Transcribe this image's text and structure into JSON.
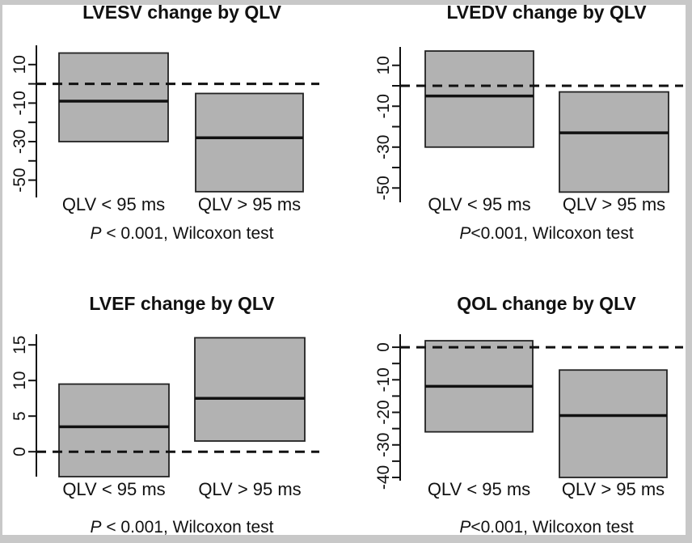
{
  "figure": {
    "background": "#ffffff",
    "border_color": "#c8c8c8",
    "box_fill": "#b2b2b2",
    "box_stroke": "#222222",
    "line_color": "#111111"
  },
  "chart_data": [
    {
      "type": "boxplot",
      "id": "lvesv",
      "title": "LVESV change by QLV",
      "categories": [
        "QLV < 95 ms",
        "QLV > 95 ms"
      ],
      "series": [
        {
          "name": "QLV < 95 ms",
          "q1": -30,
          "median": -9,
          "q3": 16
        },
        {
          "name": "QLV > 95 ms",
          "q1": -56,
          "median": -28,
          "q3": -5
        }
      ],
      "ylim": [
        -59,
        20
      ],
      "yticks": [
        {
          "v": 10,
          "label": "10"
        },
        {
          "v": 0,
          "label": ""
        },
        {
          "v": -10,
          "label": "-10"
        },
        {
          "v": -20,
          "label": ""
        },
        {
          "v": -30,
          "label": "-30"
        },
        {
          "v": -40,
          "label": ""
        },
        {
          "v": -50,
          "label": "-50"
        }
      ],
      "reference_line": 0,
      "note_p": "P",
      "note_rest": " < 0.001, Wilcoxon test"
    },
    {
      "type": "boxplot",
      "id": "lvedv",
      "title": "LVEDV change by QLV",
      "categories": [
        "QLV < 95 ms",
        "QLV > 95 ms"
      ],
      "series": [
        {
          "name": "QLV < 95 ms",
          "q1": -30,
          "median": -5,
          "q3": 17
        },
        {
          "name": "QLV > 95 ms",
          "q1": -52,
          "median": -23,
          "q3": -3
        }
      ],
      "ylim": [
        -57,
        19
      ],
      "yticks": [
        {
          "v": 10,
          "label": "10"
        },
        {
          "v": 0,
          "label": ""
        },
        {
          "v": -10,
          "label": "-10"
        },
        {
          "v": -20,
          "label": ""
        },
        {
          "v": -30,
          "label": "-30"
        },
        {
          "v": -40,
          "label": ""
        },
        {
          "v": -50,
          "label": "-50"
        }
      ],
      "reference_line": 0,
      "note_p": "P",
      "note_rest": "<0.001, Wilcoxon test"
    },
    {
      "type": "boxplot",
      "id": "lvef",
      "title": "LVEF change by QLV",
      "categories": [
        "QLV < 95 ms",
        "QLV > 95 ms"
      ],
      "series": [
        {
          "name": "QLV < 95 ms",
          "q1": -3.5,
          "median": 3.5,
          "q3": 9.5
        },
        {
          "name": "QLV > 95 ms",
          "q1": 1.5,
          "median": 7.5,
          "q3": 16
        }
      ],
      "ylim": [
        -3.5,
        16.5
      ],
      "yticks": [
        {
          "v": 15,
          "label": "15"
        },
        {
          "v": 10,
          "label": "10"
        },
        {
          "v": 5,
          "label": "5"
        },
        {
          "v": 0,
          "label": "0"
        }
      ],
      "reference_line": 0,
      "note_p": "P",
      "note_rest": " < 0.001, Wilcoxon test"
    },
    {
      "type": "boxplot",
      "id": "qol",
      "title": "QOL change by QLV",
      "categories": [
        "QLV < 95 ms",
        "QLV > 95 ms"
      ],
      "series": [
        {
          "name": "QLV < 95 ms",
          "q1": -26,
          "median": -12,
          "q3": 2
        },
        {
          "name": "QLV > 95 ms",
          "q1": -40,
          "median": -21,
          "q3": -7
        }
      ],
      "ylim": [
        -41,
        4
      ],
      "yticks": [
        {
          "v": 0,
          "label": "0"
        },
        {
          "v": -5,
          "label": ""
        },
        {
          "v": -10,
          "label": "-10"
        },
        {
          "v": -15,
          "label": ""
        },
        {
          "v": -20,
          "label": "-20"
        },
        {
          "v": -25,
          "label": ""
        },
        {
          "v": -30,
          "label": "-30"
        },
        {
          "v": -35,
          "label": ""
        },
        {
          "v": -40,
          "label": "-40"
        }
      ],
      "reference_line": 0,
      "note_p": "P",
      "note_rest": "<0.001, Wilcoxon test"
    }
  ]
}
